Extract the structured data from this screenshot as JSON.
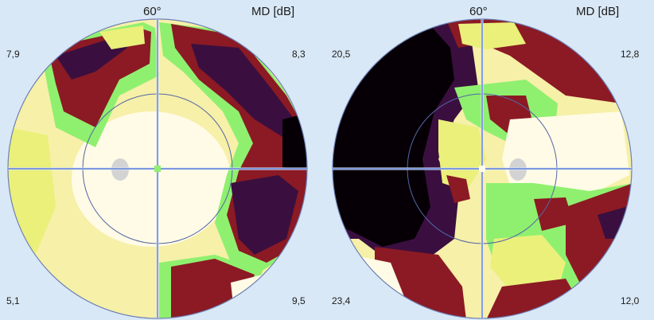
{
  "header": {
    "angle_label": "60°",
    "md_label": "MD [dB]"
  },
  "colors": {
    "background": "#d9e8f6",
    "axis": "#5f7fd6",
    "circle": "#6d7fb6",
    "lightest": "#fffbe6",
    "light_yellow": "#f6f0a8",
    "yellow": "#eaf07a",
    "green": "#8ff06f",
    "dark_red": "#8b1a24",
    "purple": "#3a0f3f",
    "black": "#060006",
    "blind_spot": "#d3d3d3"
  },
  "left_field": {
    "quadrants": {
      "top_left": "7,9",
      "top_right": "8,3",
      "bottom_left": "5,1",
      "bottom_right": "9,5"
    }
  },
  "right_field": {
    "quadrants": {
      "top_left": "20,5",
      "top_right": "12,8",
      "bottom_left": "23,4",
      "bottom_right": "12,0"
    }
  }
}
